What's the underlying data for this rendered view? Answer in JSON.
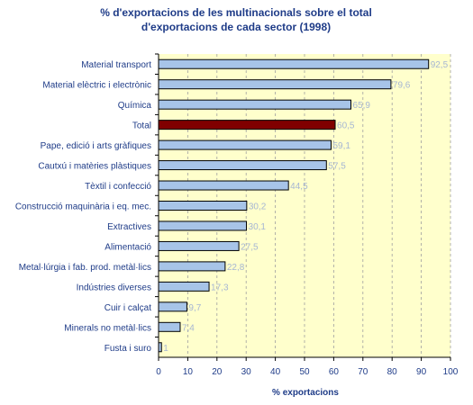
{
  "chart_data": {
    "type": "bar",
    "orientation": "horizontal",
    "title": [
      "% d'exportacions de les multinacionals sobre el total",
      "d'exportacions de cada sector (1998)"
    ],
    "xlabel": "% exportacions",
    "ylabel": "",
    "xlim": [
      0,
      100
    ],
    "xticks": [
      "0",
      "10",
      "20",
      "30",
      "40",
      "50",
      "60",
      "70",
      "80",
      "90",
      "100"
    ],
    "grid": true,
    "categories": [
      "Material transport",
      "Material elèctric i electrònic",
      "Química",
      "Total",
      "Pape, edició i arts gràfiques",
      "Cautxú i matèries plàstiques",
      "Tèxtil i confecció",
      "Construcció maquinària i eq. mec.",
      "Extractives",
      "Alimentació",
      "Metal·lúrgia i fab. prod. metàl·lics",
      "Indústries diverses",
      "Cuir i calçat",
      "Minerals no metàl·lics",
      "Fusta i suro"
    ],
    "values": [
      92.5,
      79.6,
      65.9,
      60.5,
      59.1,
      57.5,
      44.5,
      30.2,
      30.1,
      27.5,
      22.8,
      17.3,
      9.7,
      7.4,
      1
    ],
    "value_labels": [
      "92,5",
      "79,6",
      "65,9",
      "60,5",
      "59,1",
      "57,5",
      "44,5",
      "30,2",
      "30,1",
      "27,5",
      "22,8",
      "17,3",
      "9,7",
      "7,4",
      "1"
    ],
    "highlight_index": 3,
    "colors": {
      "bar": "#a7c4e8",
      "highlight": "#800000",
      "plot_bg": "#ffffcc",
      "text": "#1f3c88",
      "value_label": "#a6b6d3",
      "grid": "#a0a0a0"
    }
  }
}
